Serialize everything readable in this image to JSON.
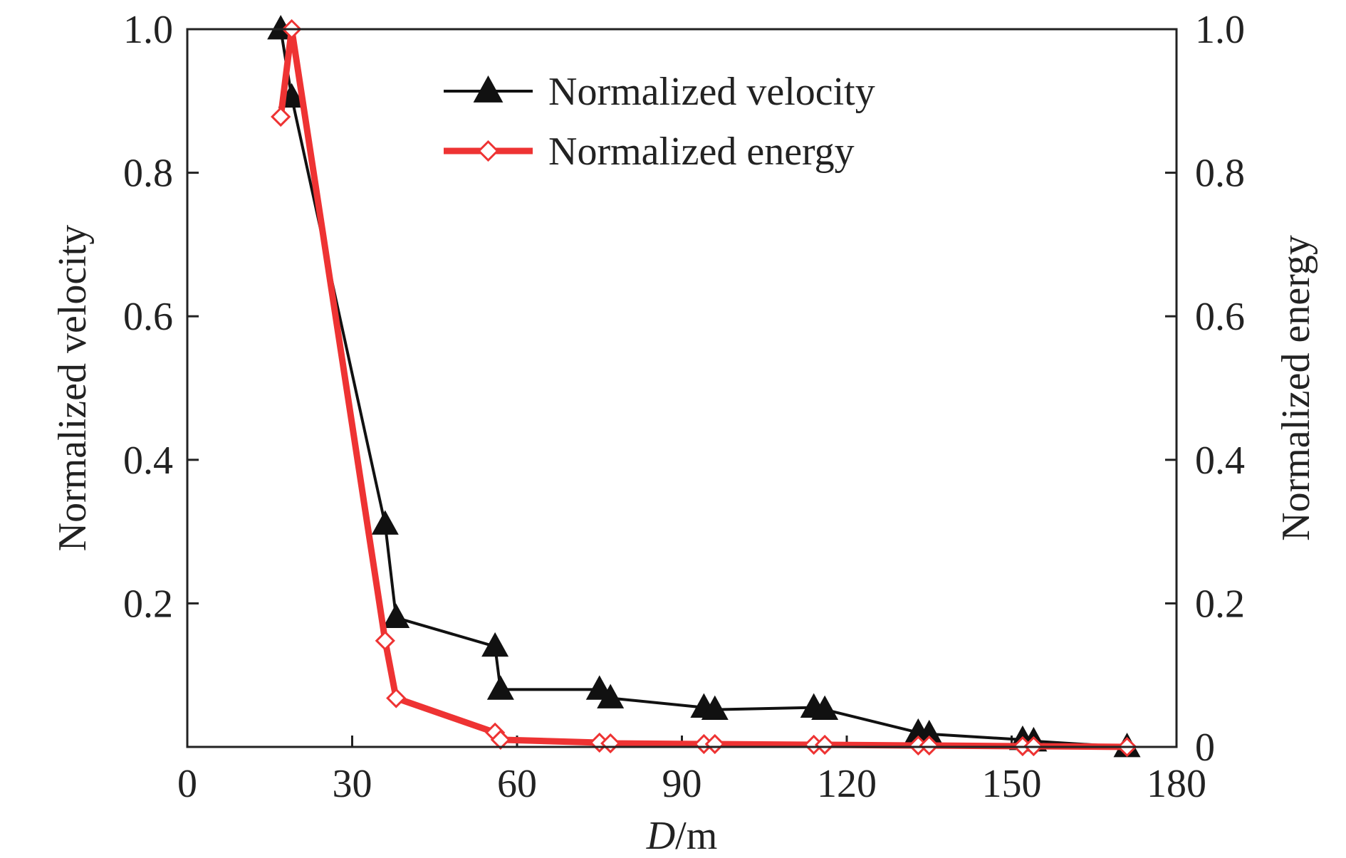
{
  "chart_data": {
    "type": "line",
    "title": "",
    "xlabel": {
      "italic": "D",
      "rest": "/m"
    },
    "ylabel_left": "Normalized velocity",
    "ylabel_right": "Normalized energy",
    "xlim": [
      0,
      180
    ],
    "ylim_left": [
      0,
      1.0
    ],
    "ylim_right": [
      0,
      1.0
    ],
    "x_ticks": [
      0,
      30,
      60,
      90,
      120,
      150,
      180
    ],
    "x_tick_labels": [
      "0",
      "30",
      "60",
      "90",
      "120",
      "150",
      "180"
    ],
    "y_left_ticks": [
      0.2,
      0.4,
      0.6,
      0.8,
      1.0
    ],
    "y_left_tick_labels": [
      "0.2",
      "0.4",
      "0.6",
      "0.8",
      "1.0"
    ],
    "y_right_ticks": [
      0,
      0.2,
      0.4,
      0.6,
      0.8,
      1.0
    ],
    "y_right_tick_labels": [
      "0",
      "0.2",
      "0.4",
      "0.6",
      "0.8",
      "1.0"
    ],
    "grid": false,
    "legend_position": "top-center",
    "series": [
      {
        "name": "Normalized velocity",
        "axis": "left",
        "color": "#111111",
        "marker": "triangle",
        "x": [
          17,
          19,
          36,
          38,
          56,
          57,
          75,
          77,
          94,
          96,
          114,
          116,
          133,
          135,
          152,
          154,
          171
        ],
        "y": [
          1.0,
          0.905,
          0.31,
          0.18,
          0.14,
          0.08,
          0.08,
          0.068,
          0.055,
          0.052,
          0.055,
          0.052,
          0.02,
          0.018,
          0.01,
          0.008,
          0.0
        ]
      },
      {
        "name": "Normalized energy",
        "axis": "right",
        "color": "#ee3333",
        "marker": "diamond",
        "x": [
          17,
          19,
          36,
          38,
          56,
          57,
          75,
          77,
          94,
          96,
          114,
          116,
          133,
          135,
          152,
          154,
          171
        ],
        "y": [
          0.878,
          1.0,
          0.148,
          0.068,
          0.02,
          0.01,
          0.006,
          0.005,
          0.004,
          0.004,
          0.003,
          0.003,
          0.002,
          0.002,
          0.001,
          0.001,
          0.0
        ]
      }
    ]
  }
}
